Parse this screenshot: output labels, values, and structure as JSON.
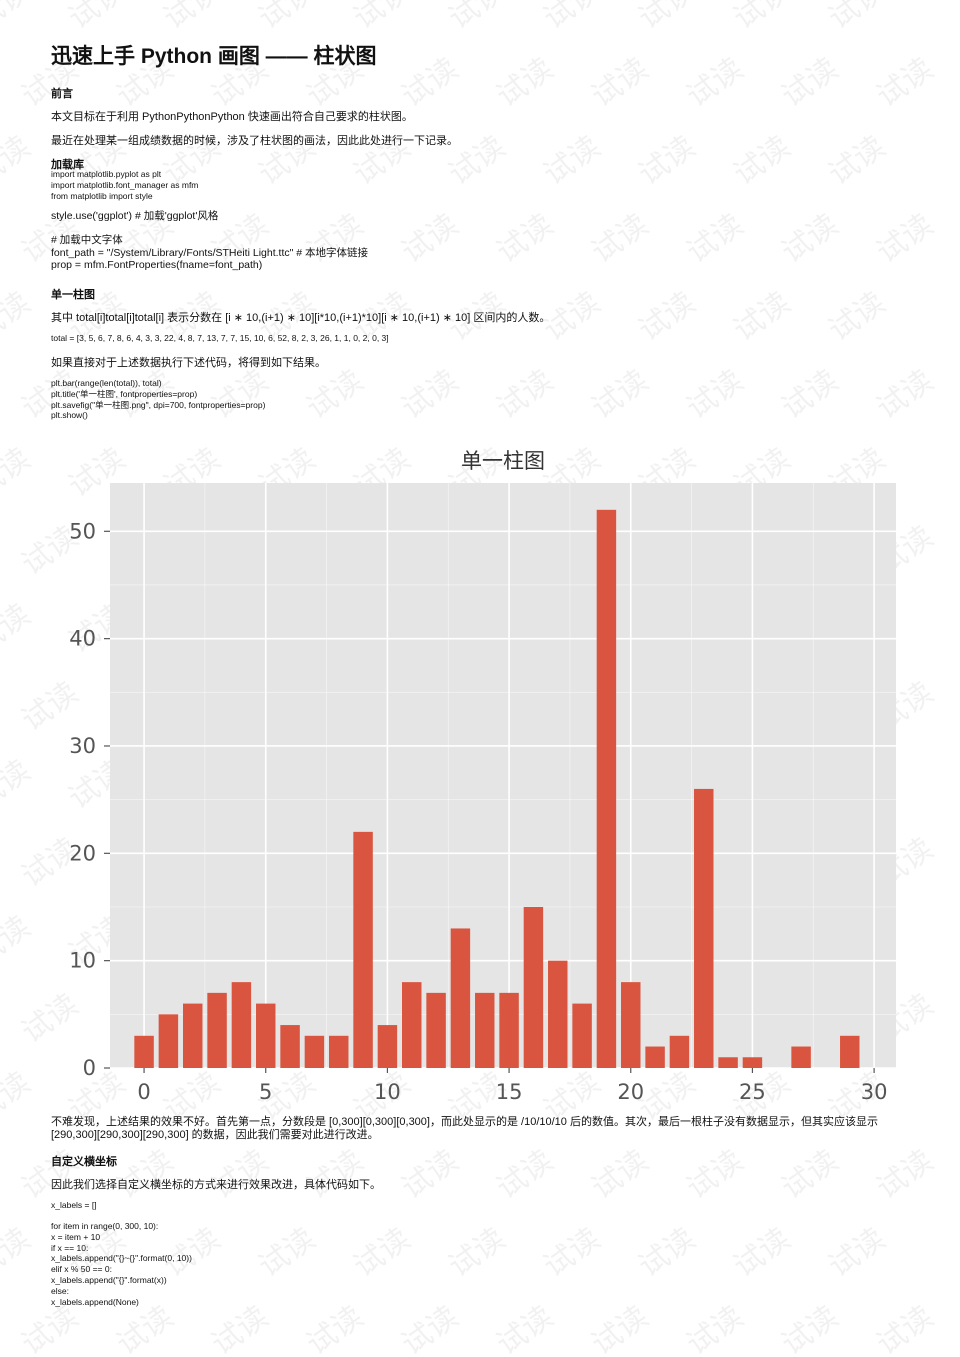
{
  "title": "迅速上手 Python 画图 —— 柱状图",
  "sections": {
    "preface_heading": "前言",
    "preface_p1": "本文目标在于利用 PythonPythonPython 快速画出符合自己要求的柱状图。",
    "preface_p2": "最近在处理某一组成绩数据的时候，涉及了柱状图的画法，因此此处进行一下记录。",
    "load_heading": "加载库",
    "load_code": [
      "import matplotlib.pyplot as plt",
      "import matplotlib.font_manager as mfm",
      "from matplotlib import style"
    ],
    "style_line": "style.use('ggplot') # 加载'ggplot'风格",
    "font_code": [
      "# 加载中文字体",
      "font_path = \"/System/Library/Fonts/STHeiti Light.ttc\" # 本地字体链接",
      "prop = mfm.FontProperties(fname=font_path)"
    ],
    "single_heading": "单一柱图",
    "single_p1": "其中 total[i]total[i]total[i] 表示分数在 [i ∗ 10,(i+1) ∗ 10][i*10,(i+1)*10][i ∗ 10,(i+1) ∗ 10] 区间内的人数。",
    "total_line": "total = [3, 5, 6, 7, 8, 6, 4, 3, 3, 22, 4, 8, 7, 13, 7, 7, 15, 10, 6, 52, 8, 2, 3, 26, 1, 1, 0, 2, 0, 3]",
    "single_p2": "如果直接对于上述数据执行下述代码，将得到如下结果。",
    "plot_code": [
      "plt.bar(range(len(total)), total)",
      "plt.title('单一柱图', fontproperties=prop)",
      "plt.savefig(\"单一柱图.png\", dpi=700, fontproperties=prop)",
      "plt.show()"
    ],
    "after_p": "不难发现，上述结果的效果不好。首先第一点，分数段是 [0,300][0,300][0,300]，而此处显示的是 /10/10/10 后的数值。其次，最后一根柱子没有数据显示，但其实应该显示 [290,300][290,300][290,300] 的数据，因此我们需要对此进行改进。",
    "custom_heading": "自定义横坐标",
    "custom_p": "因此我们选择自定义横坐标的方式来进行效果改进，具体代码如下。",
    "custom_code_a": [
      "x_labels = []"
    ],
    "custom_code_b": [
      "for item in range(0, 300, 10):",
      "x = item + 10",
      "if x == 10:",
      "x_labels.append(\"{}~{}\".format(0, 10))",
      "elif x % 50 == 0:",
      "x_labels.append(\"{}\".format(x))",
      "else:",
      "x_labels.append(None)"
    ]
  },
  "watermark_text": "试读",
  "colors": {
    "bar": "#d9553f",
    "plot_bg": "#e5e5e5",
    "grid": "#ffffff",
    "axis_text": "#555555",
    "title_text": "#333333"
  },
  "chart_data": {
    "type": "bar",
    "title": "单一柱图",
    "x": [
      0,
      1,
      2,
      3,
      4,
      5,
      6,
      7,
      8,
      9,
      10,
      11,
      12,
      13,
      14,
      15,
      16,
      17,
      18,
      19,
      20,
      21,
      22,
      23,
      24,
      25,
      26,
      27,
      28,
      29
    ],
    "values": [
      3,
      5,
      6,
      7,
      8,
      6,
      4,
      3,
      3,
      22,
      4,
      8,
      7,
      13,
      7,
      7,
      15,
      10,
      6,
      52,
      8,
      2,
      3,
      26,
      1,
      1,
      0,
      2,
      0,
      3
    ],
    "xticks": [
      0,
      5,
      10,
      15,
      20,
      25,
      30
    ],
    "yticks": [
      0,
      10,
      20,
      30,
      40,
      50
    ],
    "xlim": [
      -1.4,
      30.9
    ],
    "ylim": [
      0,
      54.5
    ],
    "grid": true,
    "style": "ggplot"
  }
}
